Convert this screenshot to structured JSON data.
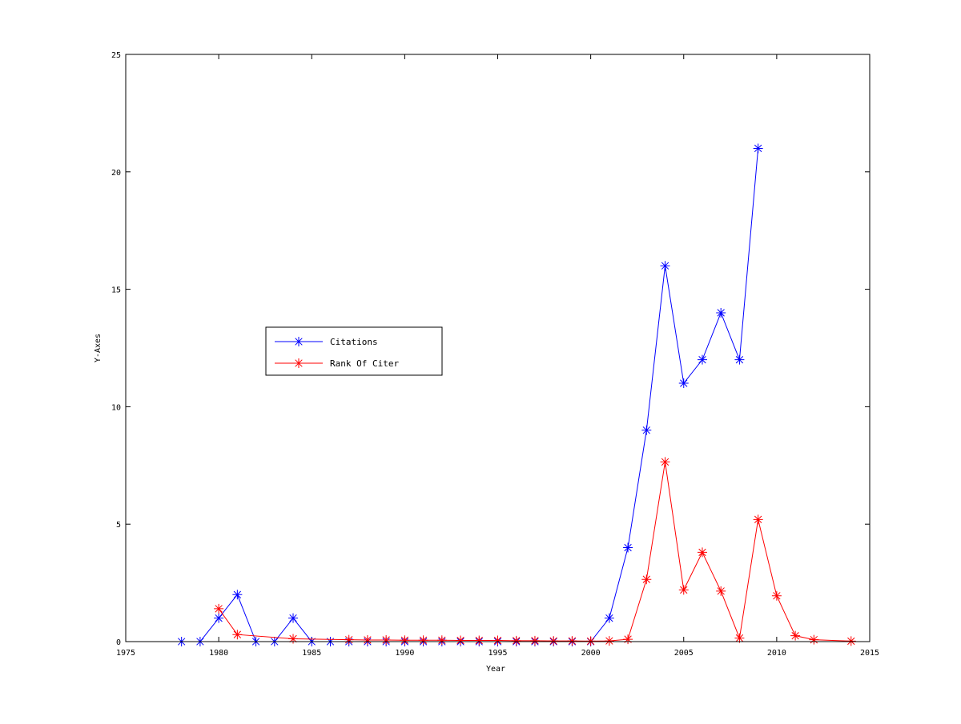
{
  "chart_data": {
    "type": "line",
    "title": "",
    "xlabel": "Year",
    "ylabel": "Y-Axes",
    "xlim": [
      1975,
      2015
    ],
    "ylim": [
      0,
      25
    ],
    "xticks": [
      1975,
      1980,
      1985,
      1990,
      1995,
      2000,
      2005,
      2010,
      2015
    ],
    "yticks": [
      0,
      5,
      10,
      15,
      20,
      25
    ],
    "grid": false,
    "legend_position": "center-left",
    "marker": "asterisk",
    "series": [
      {
        "name": "Citations",
        "color": "#0000ff",
        "x": [
          1978,
          1979,
          1980,
          1981,
          1982,
          1983,
          1984,
          1985,
          1986,
          1987,
          1988,
          1989,
          1990,
          1991,
          1992,
          1993,
          1994,
          1995,
          1996,
          1997,
          1998,
          1999,
          2000,
          2001,
          2002,
          2003,
          2004,
          2005,
          2006,
          2007,
          2008,
          2009
        ],
        "y": [
          0,
          0,
          1,
          2,
          0,
          0,
          1,
          0,
          0,
          0,
          0,
          0,
          0,
          0,
          0,
          0,
          0,
          0,
          0,
          0,
          0,
          0,
          0,
          1,
          4,
          9,
          16,
          11,
          12,
          14,
          12,
          21
        ]
      },
      {
        "name": "Rank Of Citer",
        "color": "#ff0000",
        "x": [
          1980,
          1981,
          1984,
          1987,
          1988,
          1989,
          1990,
          1991,
          1992,
          1993,
          1994,
          1995,
          1996,
          1997,
          1998,
          1999,
          2000,
          2001,
          2002,
          2003,
          2004,
          2005,
          2006,
          2007,
          2008,
          2009,
          2010,
          2011,
          2012,
          2014
        ],
        "y": [
          1.4,
          0.3,
          0.12,
          0.08,
          0.07,
          0.07,
          0.06,
          0.06,
          0.06,
          0.05,
          0.05,
          0.05,
          0.04,
          0.04,
          0.03,
          0.03,
          0.02,
          0.03,
          0.1,
          2.65,
          7.65,
          2.2,
          3.8,
          2.15,
          0.15,
          5.2,
          1.95,
          0.25,
          0.08,
          0.02
        ]
      }
    ]
  }
}
